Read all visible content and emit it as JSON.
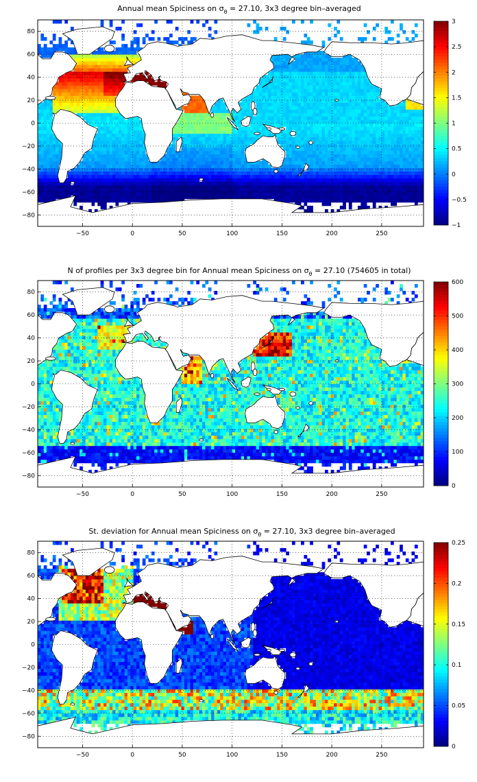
{
  "panels": [
    {
      "title_main": "Annual mean Spiciness on σ",
      "title_sub": "θ",
      "title_tail": " = 27.10, 3x3 degree bin–averaged",
      "cbar_ticks": [
        "3",
        "2.5",
        "2",
        "1.5",
        "1",
        "0.5",
        "0",
        "−0.5",
        "−1"
      ]
    },
    {
      "title_main": "N of profiles per 3x3 degree bin for Annual mean Spiciness on σ",
      "title_sub": "θ",
      "title_tail": " = 27.10 (754605 in total)",
      "cbar_ticks": [
        "600",
        "500",
        "400",
        "300",
        "200",
        "100",
        "0"
      ]
    },
    {
      "title_main": "St. deviation for Annual mean Spiciness on σ",
      "title_sub": "θ",
      "title_tail": " = 27.10, 3x3 degree bin–averaged",
      "cbar_ticks": [
        "0.25",
        "0.2",
        "0.15",
        "0.1",
        "0.05",
        "0"
      ]
    }
  ],
  "axes": {
    "x_ticks": [
      "−50",
      "0",
      "50",
      "100",
      "150",
      "200",
      "250"
    ],
    "y_ticks": [
      "80",
      "60",
      "40",
      "20",
      "0",
      "−20",
      "−40",
      "−60",
      "−80"
    ]
  },
  "chart_data": [
    {
      "type": "heatmap",
      "title": "Annual mean Spiciness on σθ = 27.10, 3x3 degree bin–averaged",
      "x_range": [
        -95,
        292
      ],
      "y_range": [
        -90,
        90
      ],
      "x_ticks": [
        -50,
        0,
        50,
        100,
        150,
        200,
        250
      ],
      "y_ticks": [
        80,
        60,
        40,
        20,
        0,
        -20,
        -40,
        -60,
        -80
      ],
      "colorbar_range": [
        -1,
        3
      ],
      "colormap": "jet",
      "grid": true,
      "bin_size_deg": 3
    },
    {
      "type": "heatmap",
      "title": "N of profiles per 3x3 degree bin for Annual mean Spiciness on σθ = 27.10 (754605 in total)",
      "x_range": [
        -95,
        292
      ],
      "y_range": [
        -90,
        90
      ],
      "x_ticks": [
        -50,
        0,
        50,
        100,
        150,
        200,
        250
      ],
      "y_ticks": [
        80,
        60,
        40,
        20,
        0,
        -20,
        -40,
        -60,
        -80
      ],
      "colorbar_range": [
        0,
        600
      ],
      "colormap": "jet",
      "grid": true,
      "total_profiles": 754605,
      "bin_size_deg": 3
    },
    {
      "type": "heatmap",
      "title": "St. deviation for Annual mean Spiciness on σθ = 27.10, 3x3 degree bin–averaged",
      "x_range": [
        -95,
        292
      ],
      "y_range": [
        -90,
        90
      ],
      "x_ticks": [
        -50,
        0,
        50,
        100,
        150,
        200,
        250
      ],
      "y_ticks": [
        80,
        60,
        40,
        20,
        0,
        -20,
        -40,
        -60,
        -80
      ],
      "colorbar_range": [
        0,
        0.25
      ],
      "colormap": "jet",
      "grid": true,
      "bin_size_deg": 3
    }
  ]
}
